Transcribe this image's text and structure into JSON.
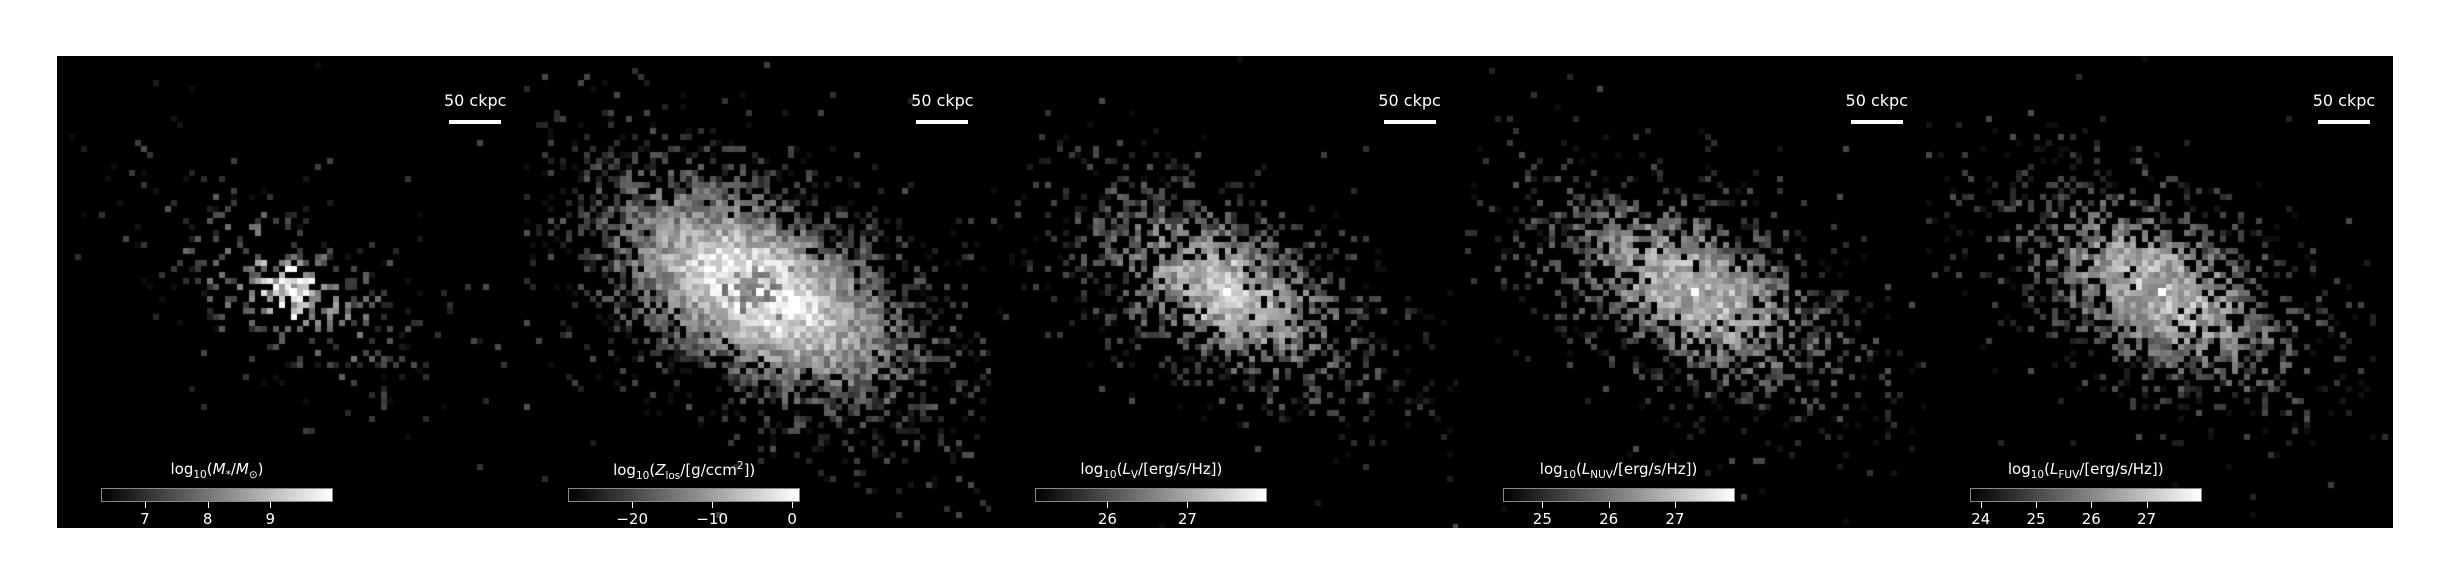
{
  "panels": [
    {
      "id": "stellar-mass",
      "scale_bar": "50 ckpc",
      "colorbar": {
        "label_html": "log<sub>10</sub>(<i>M</i><sub>*</sub>/<i>M</i><sub>⊙</sub>)",
        "min": 6.3,
        "max": 10.0,
        "ticks": [
          {
            "label": "7",
            "value": 7
          },
          {
            "label": "8",
            "value": 8
          },
          {
            "label": "9",
            "value": 9
          }
        ]
      },
      "map": {
        "seed": 11,
        "spread": 1.0,
        "core": 1.0,
        "fill": 0.25,
        "bright": 0.45
      }
    },
    {
      "id": "metallicity",
      "scale_bar": "50 ckpc",
      "colorbar": {
        "label_html": "log<sub>10</sub>(<i>Z</i><sub>los</sub>/[g/ccm<sup>2</sup>])",
        "min": -28,
        "max": 1,
        "ticks": [
          {
            "label": "−20",
            "value": -20
          },
          {
            "label": "−10",
            "value": -10
          },
          {
            "label": "0",
            "value": 0
          }
        ]
      },
      "map": {
        "seed": 23,
        "spread": 1.35,
        "core": 0.6,
        "fill": 0.95,
        "bright": 0.85
      }
    },
    {
      "id": "v-band",
      "scale_bar": "50 ckpc",
      "colorbar": {
        "label_html": "log<sub>10</sub>(<i>L</i><sub>V</sub>/[erg/s/Hz])",
        "min": 25.1,
        "max": 28.0,
        "ticks": [
          {
            "label": "26",
            "value": 26
          },
          {
            "label": "27",
            "value": 27
          }
        ]
      },
      "map": {
        "seed": 37,
        "spread": 1.15,
        "core": 0.9,
        "fill": 0.6,
        "bright": 0.6
      }
    },
    {
      "id": "nuv-band",
      "scale_bar": "50 ckpc",
      "colorbar": {
        "label_html": "log<sub>10</sub>(<i>L</i><sub>NUV</sub>/[erg/s/Hz])",
        "min": 24.4,
        "max": 27.9,
        "ticks": [
          {
            "label": "25",
            "value": 25
          },
          {
            "label": "26",
            "value": 26
          },
          {
            "label": "27",
            "value": 27
          }
        ]
      },
      "map": {
        "seed": 51,
        "spread": 1.2,
        "core": 0.7,
        "fill": 0.62,
        "bright": 0.62
      }
    },
    {
      "id": "fuv-band",
      "scale_bar": "50 ckpc",
      "colorbar": {
        "label_html": "log<sub>10</sub>(<i>L</i><sub>FUV</sub>/[erg/s/Hz])",
        "min": 23.8,
        "max": 28.0,
        "ticks": [
          {
            "label": "24",
            "value": 24
          },
          {
            "label": "25",
            "value": 25
          },
          {
            "label": "26",
            "value": 26
          },
          {
            "label": "27",
            "value": 27
          }
        ]
      },
      "map": {
        "seed": 67,
        "spread": 1.2,
        "core": 0.7,
        "fill": 0.6,
        "bright": 0.62
      }
    }
  ]
}
